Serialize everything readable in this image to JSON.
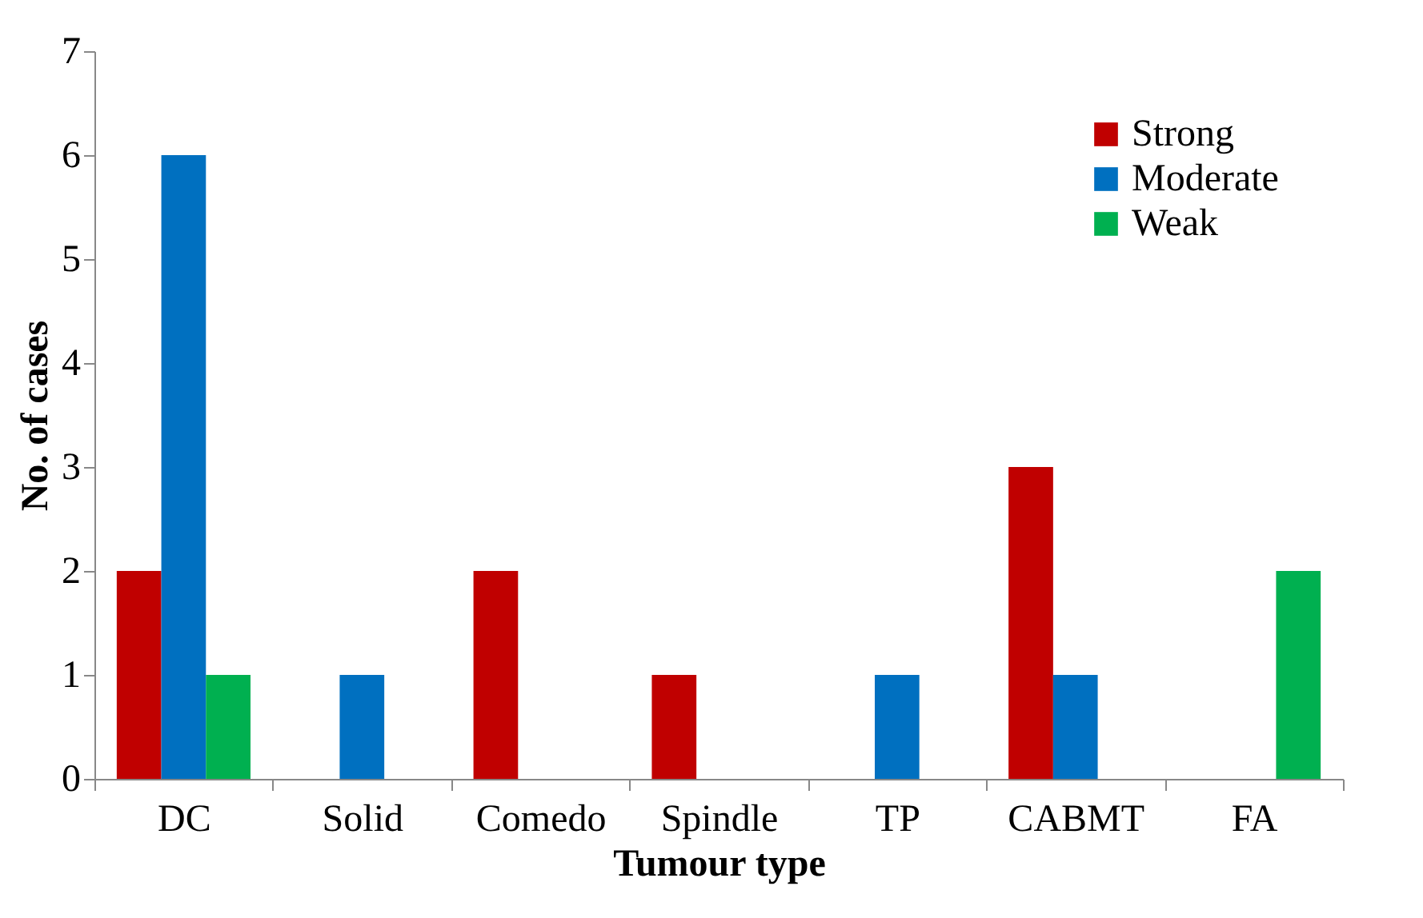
{
  "chart_data": {
    "type": "bar",
    "xlabel": "Tumour type",
    "ylabel": "No. of cases",
    "categories": [
      "DC",
      "Solid",
      "Comedo",
      "Spindle",
      "TP",
      "CABMT",
      "FA"
    ],
    "series": [
      {
        "name": "Strong",
        "color": "#c00000",
        "values": [
          2,
          0,
          2,
          1,
          0,
          3,
          0
        ]
      },
      {
        "name": "Moderate",
        "color": "#0070c0",
        "values": [
          6,
          1,
          0,
          0,
          1,
          1,
          0
        ]
      },
      {
        "name": "Weak",
        "color": "#00b050",
        "values": [
          1,
          0,
          0,
          0,
          0,
          0,
          2
        ]
      }
    ],
    "ylim": [
      0,
      7
    ],
    "yticks": [
      0,
      1,
      2,
      3,
      4,
      5,
      6,
      7
    ],
    "grid": false,
    "legend": "top right"
  }
}
